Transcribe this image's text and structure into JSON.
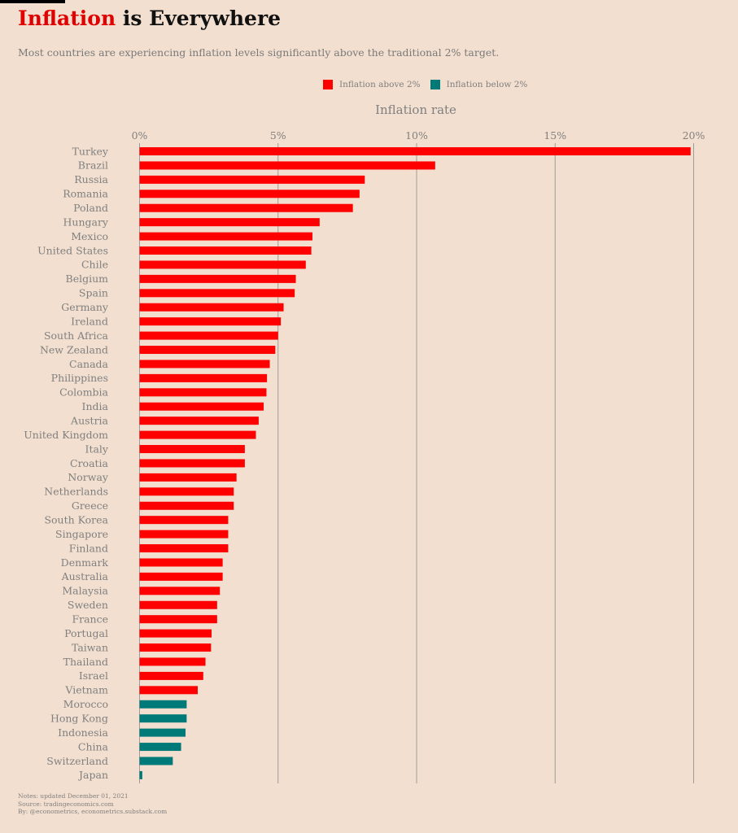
{
  "title": {
    "accent": "Inflation",
    "rest": "is Everywhere"
  },
  "subtitle": "Most countries are experiencing inflation levels significantly above the traditional 2% target.",
  "legend": [
    {
      "label": "Inflation above 2%",
      "color": "#ff0000"
    },
    {
      "label": "Inflation below 2%",
      "color": "#007a78"
    }
  ],
  "colors": {
    "above": "#ff0000",
    "below": "#007a78",
    "grid": "#9c9c9c",
    "text": "#808080"
  },
  "notes": {
    "line1": "Notes: updated December 01, 2021",
    "line2": "Source: tradingeconomics.com",
    "line3": "By: @econometrics, econometrics.substack.com"
  },
  "chart_data": {
    "type": "bar",
    "orientation": "horizontal",
    "xlabel": "Inflation rate",
    "xlim": [
      0,
      20
    ],
    "xticks": [
      0,
      5,
      10,
      15,
      20
    ],
    "xtick_labels": [
      "0%",
      "5%",
      "10%",
      "15%",
      "20%"
    ],
    "grid": true,
    "legend_position": "top-center",
    "categories": [
      "Turkey",
      "Brazil",
      "Russia",
      "Romania",
      "Poland",
      "Hungary",
      "Mexico",
      "United States",
      "Chile",
      "Belgium",
      "Spain",
      "Germany",
      "Ireland",
      "South Africa",
      "New Zealand",
      "Canada",
      "Philippines",
      "Colombia",
      "India",
      "Austria",
      "United Kingdom",
      "Italy",
      "Croatia",
      "Norway",
      "Netherlands",
      "Greece",
      "South Korea",
      "Singapore",
      "Finland",
      "Denmark",
      "Australia",
      "Malaysia",
      "Sweden",
      "France",
      "Portugal",
      "Taiwan",
      "Thailand",
      "Israel",
      "Vietnam",
      "Morocco",
      "Hong Kong",
      "Indonesia",
      "China",
      "Switzerland",
      "Japan"
    ],
    "values": [
      19.89,
      10.67,
      8.13,
      7.94,
      7.7,
      6.5,
      6.24,
      6.2,
      6.0,
      5.64,
      5.6,
      5.2,
      5.1,
      5.0,
      4.9,
      4.7,
      4.6,
      4.58,
      4.48,
      4.3,
      4.2,
      3.8,
      3.8,
      3.5,
      3.4,
      3.4,
      3.2,
      3.2,
      3.2,
      3.0,
      3.0,
      2.9,
      2.8,
      2.8,
      2.6,
      2.58,
      2.38,
      2.3,
      2.1,
      1.7,
      1.7,
      1.66,
      1.5,
      1.2,
      0.1
    ],
    "threshold": 2
  }
}
